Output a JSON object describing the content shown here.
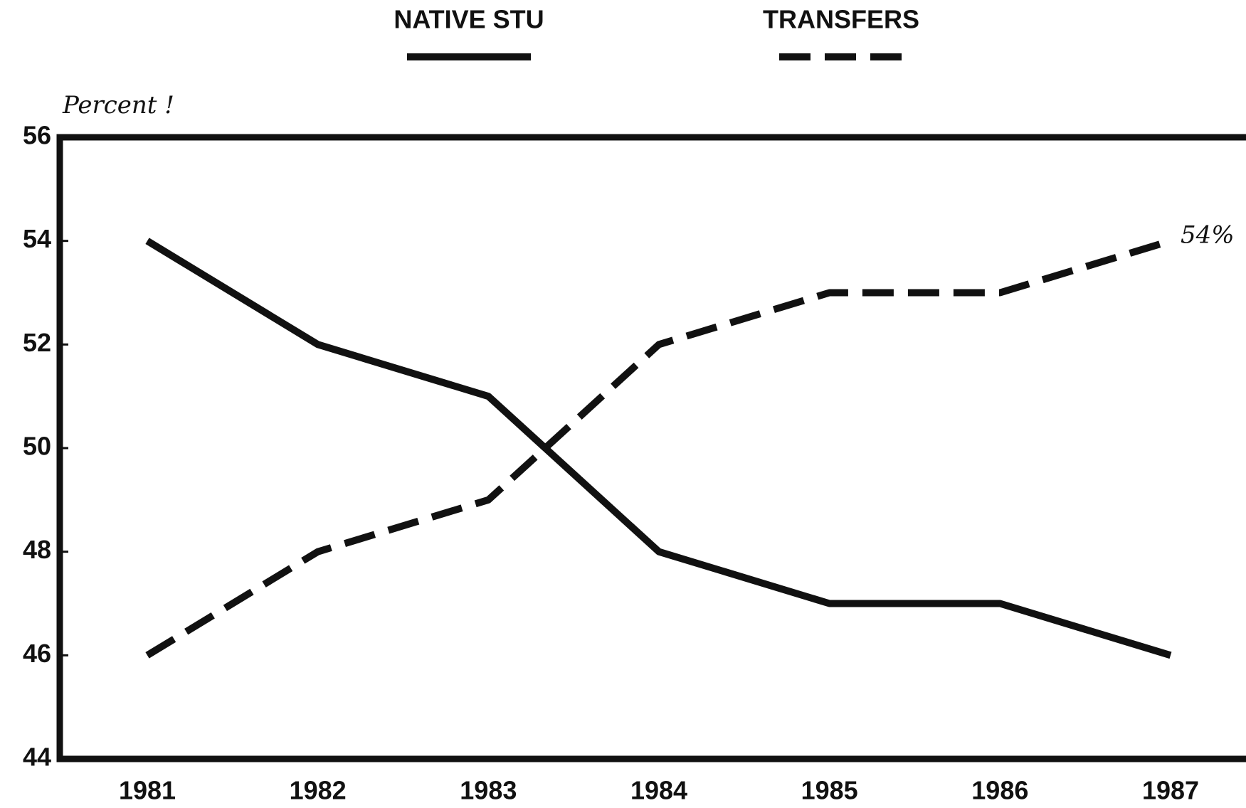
{
  "chart_data": {
    "type": "line",
    "y_label": "Percent !",
    "categories": [
      "1981",
      "1982",
      "1983",
      "1984",
      "1985",
      "1986",
      "1987"
    ],
    "series": [
      {
        "name": "NATIVE STU",
        "color": "#111111",
        "style": "solid",
        "values": [
          54,
          52,
          51,
          48,
          47,
          47,
          46
        ]
      },
      {
        "name": "TRANSFERS",
        "color": "#111111",
        "style": "dashed",
        "values": [
          46,
          48,
          49,
          52,
          53,
          53,
          54
        ]
      }
    ],
    "annotations": [
      {
        "text": "54%",
        "series": 1,
        "index": 6
      }
    ],
    "ylim": [
      44,
      56
    ],
    "yticks": [
      44,
      46,
      48,
      50,
      52,
      54,
      56
    ],
    "legend": "top",
    "grid": false
  }
}
